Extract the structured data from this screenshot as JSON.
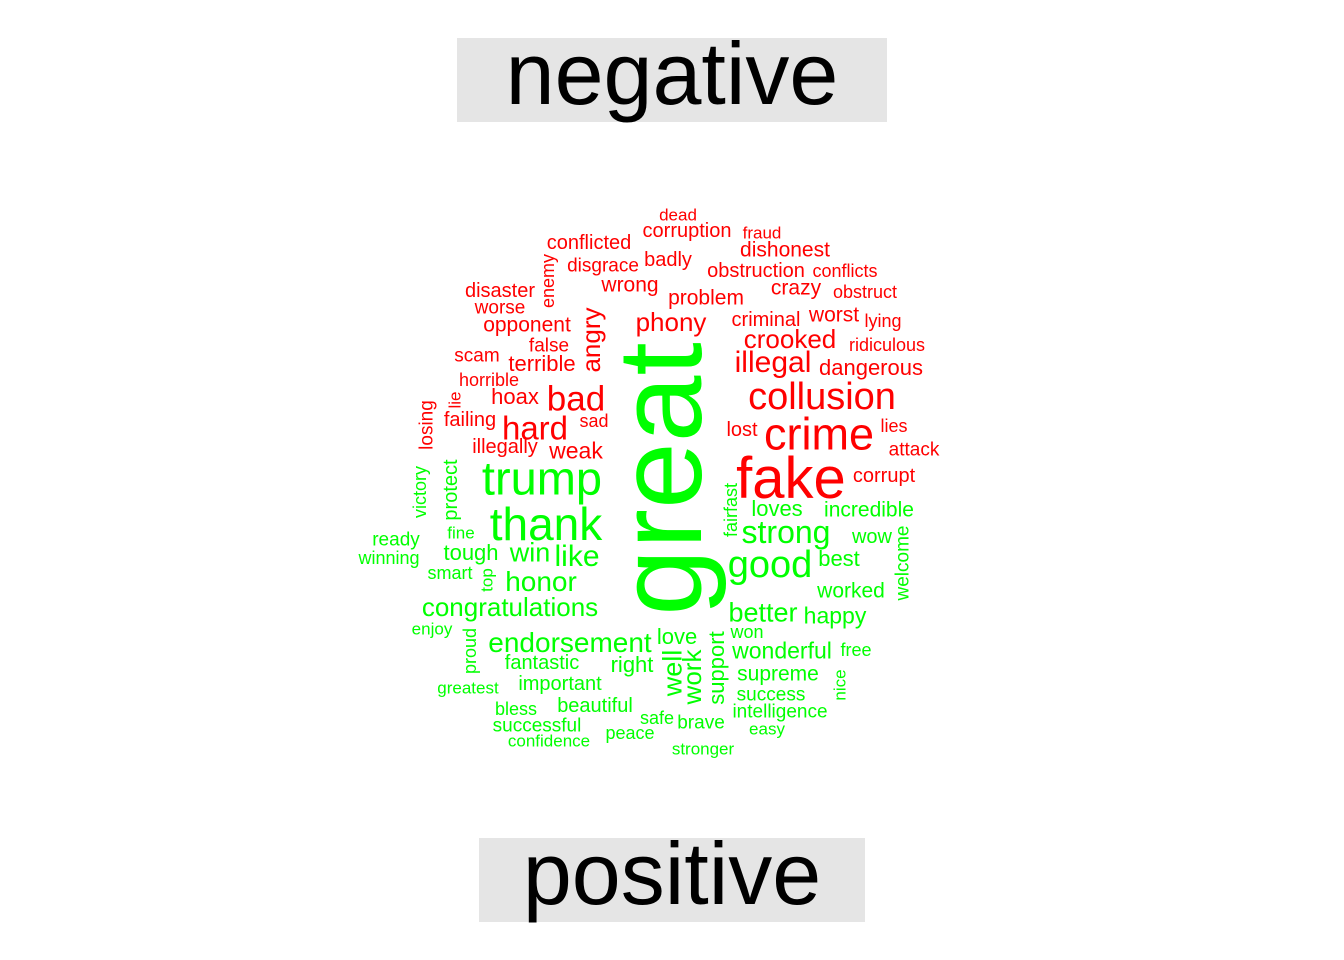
{
  "labels": {
    "negative": "negative",
    "positive": "positive"
  },
  "colors": {
    "negative": "#ff0000",
    "positive": "#00ff00"
  },
  "words": [
    {
      "text": "dead",
      "group": "negative"
    },
    {
      "text": "corruption",
      "group": "negative"
    },
    {
      "text": "fraud",
      "group": "negative"
    },
    {
      "text": "conflicted",
      "group": "negative"
    },
    {
      "text": "dishonest",
      "group": "negative"
    },
    {
      "text": "disgrace",
      "group": "negative"
    },
    {
      "text": "badly",
      "group": "negative"
    },
    {
      "text": "obstruction",
      "group": "negative"
    },
    {
      "text": "conflicts",
      "group": "negative"
    },
    {
      "text": "enemy",
      "group": "negative"
    },
    {
      "text": "disaster",
      "group": "negative"
    },
    {
      "text": "wrong",
      "group": "negative"
    },
    {
      "text": "crazy",
      "group": "negative"
    },
    {
      "text": "obstruct",
      "group": "negative"
    },
    {
      "text": "worse",
      "group": "negative"
    },
    {
      "text": "problem",
      "group": "negative"
    },
    {
      "text": "opponent",
      "group": "negative"
    },
    {
      "text": "phony",
      "group": "negative"
    },
    {
      "text": "criminal",
      "group": "negative"
    },
    {
      "text": "worst",
      "group": "negative"
    },
    {
      "text": "lying",
      "group": "negative"
    },
    {
      "text": "angry",
      "group": "negative"
    },
    {
      "text": "false",
      "group": "negative"
    },
    {
      "text": "crooked",
      "group": "negative"
    },
    {
      "text": "ridiculous",
      "group": "negative"
    },
    {
      "text": "scam",
      "group": "negative"
    },
    {
      "text": "terrible",
      "group": "negative"
    },
    {
      "text": "illegal",
      "group": "negative"
    },
    {
      "text": "dangerous",
      "group": "negative"
    },
    {
      "text": "horrible",
      "group": "negative"
    },
    {
      "text": "hoax",
      "group": "negative"
    },
    {
      "text": "bad",
      "group": "negative"
    },
    {
      "text": "collusion",
      "group": "negative"
    },
    {
      "text": "lie",
      "group": "negative"
    },
    {
      "text": "losing",
      "group": "negative"
    },
    {
      "text": "failing",
      "group": "negative"
    },
    {
      "text": "sad",
      "group": "negative"
    },
    {
      "text": "hard",
      "group": "negative"
    },
    {
      "text": "lost",
      "group": "negative"
    },
    {
      "text": "crime",
      "group": "negative"
    },
    {
      "text": "lies",
      "group": "negative"
    },
    {
      "text": "illegally",
      "group": "negative"
    },
    {
      "text": "weak",
      "group": "negative"
    },
    {
      "text": "attack",
      "group": "negative"
    },
    {
      "text": "fake",
      "group": "negative"
    },
    {
      "text": "corrupt",
      "group": "negative"
    },
    {
      "text": "great",
      "group": "positive"
    },
    {
      "text": "victory",
      "group": "positive"
    },
    {
      "text": "protect",
      "group": "positive"
    },
    {
      "text": "trump",
      "group": "positive"
    },
    {
      "text": "fairfast",
      "group": "positive"
    },
    {
      "text": "loves",
      "group": "positive"
    },
    {
      "text": "incredible",
      "group": "positive"
    },
    {
      "text": "thank",
      "group": "positive"
    },
    {
      "text": "fine",
      "group": "positive"
    },
    {
      "text": "strong",
      "group": "positive"
    },
    {
      "text": "wow",
      "group": "positive"
    },
    {
      "text": "ready",
      "group": "positive"
    },
    {
      "text": "tough",
      "group": "positive"
    },
    {
      "text": "win",
      "group": "positive"
    },
    {
      "text": "like",
      "group": "positive"
    },
    {
      "text": "best",
      "group": "positive"
    },
    {
      "text": "welcome",
      "group": "positive"
    },
    {
      "text": "winning",
      "group": "positive"
    },
    {
      "text": "good",
      "group": "positive"
    },
    {
      "text": "smart",
      "group": "positive"
    },
    {
      "text": "top",
      "group": "positive"
    },
    {
      "text": "honor",
      "group": "positive"
    },
    {
      "text": "worked",
      "group": "positive"
    },
    {
      "text": "congratulations",
      "group": "positive"
    },
    {
      "text": "better",
      "group": "positive"
    },
    {
      "text": "happy",
      "group": "positive"
    },
    {
      "text": "enjoy",
      "group": "positive"
    },
    {
      "text": "won",
      "group": "positive"
    },
    {
      "text": "endorsement",
      "group": "positive"
    },
    {
      "text": "love",
      "group": "positive"
    },
    {
      "text": "proud",
      "group": "positive"
    },
    {
      "text": "support",
      "group": "positive"
    },
    {
      "text": "wonderful",
      "group": "positive"
    },
    {
      "text": "free",
      "group": "positive"
    },
    {
      "text": "fantastic",
      "group": "positive"
    },
    {
      "text": "right",
      "group": "positive"
    },
    {
      "text": "well",
      "group": "positive"
    },
    {
      "text": "work",
      "group": "positive"
    },
    {
      "text": "supreme",
      "group": "positive"
    },
    {
      "text": "important",
      "group": "positive"
    },
    {
      "text": "greatest",
      "group": "positive"
    },
    {
      "text": "nice",
      "group": "positive"
    },
    {
      "text": "success",
      "group": "positive"
    },
    {
      "text": "beautiful",
      "group": "positive"
    },
    {
      "text": "bless",
      "group": "positive"
    },
    {
      "text": "intelligence",
      "group": "positive"
    },
    {
      "text": "safe",
      "group": "positive"
    },
    {
      "text": "successful",
      "group": "positive"
    },
    {
      "text": "brave",
      "group": "positive"
    },
    {
      "text": "easy",
      "group": "positive"
    },
    {
      "text": "peace",
      "group": "positive"
    },
    {
      "text": "confidence",
      "group": "positive"
    },
    {
      "text": "stronger",
      "group": "positive"
    }
  ]
}
